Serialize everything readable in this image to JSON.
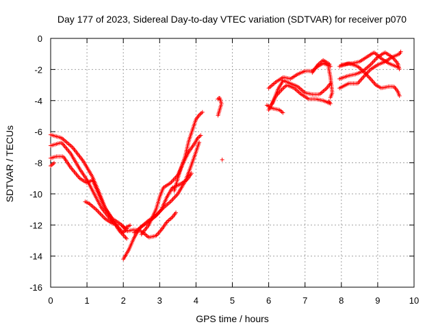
{
  "chart_data": {
    "type": "scatter",
    "title": "Day 177 of 2023, Sidereal Day-to-day VTEC variation (SDTVAR) for receiver p070",
    "xlabel": "GPS time / hours",
    "ylabel": "SDTVAR / TECUs",
    "xlim": [
      0,
      10
    ],
    "ylim": [
      -16,
      0
    ],
    "xticks": [
      0,
      1,
      2,
      3,
      4,
      5,
      6,
      7,
      8,
      9,
      10
    ],
    "yticks": [
      -16,
      -14,
      -12,
      -10,
      -8,
      -6,
      -4,
      -2,
      0
    ],
    "grid": true,
    "legend": "none",
    "marker": "plus",
    "color": "#ff0000",
    "series": [
      {
        "trace_points": [
          [
            0.0,
            -6.2
          ],
          [
            0.3,
            -6.4
          ],
          [
            0.6,
            -7.0
          ],
          [
            0.9,
            -7.9
          ],
          [
            1.15,
            -8.9
          ],
          [
            1.35,
            -10.0
          ],
          [
            1.5,
            -10.9
          ],
          [
            1.7,
            -11.6
          ],
          [
            1.9,
            -11.9
          ],
          [
            2.05,
            -12.2
          ],
          [
            2.2,
            -12.0
          ]
        ]
      },
      {
        "trace_points": [
          [
            0.0,
            -6.9
          ],
          [
            0.3,
            -6.7
          ],
          [
            0.55,
            -7.4
          ],
          [
            0.8,
            -8.4
          ],
          [
            1.0,
            -9.1
          ],
          [
            1.2,
            -10.0
          ],
          [
            1.4,
            -10.9
          ],
          [
            1.6,
            -11.5
          ],
          [
            1.8,
            -12.0
          ],
          [
            2.0,
            -12.5
          ],
          [
            2.1,
            -12.2
          ]
        ]
      },
      {
        "trace_points": [
          [
            0.0,
            -7.7
          ],
          [
            0.15,
            -7.6
          ],
          [
            0.35,
            -7.6
          ],
          [
            0.55,
            -8.3
          ],
          [
            0.8,
            -9.0
          ],
          [
            1.0,
            -9.3
          ],
          [
            1.15,
            -9.1
          ],
          [
            1.3,
            -9.9
          ],
          [
            1.5,
            -10.9
          ],
          [
            1.7,
            -11.7
          ],
          [
            1.9,
            -12.4
          ],
          [
            2.1,
            -12.9
          ]
        ]
      },
      {
        "trace_points": [
          [
            0.0,
            -8.2
          ],
          [
            0.1,
            -8.0
          ]
        ]
      },
      {
        "trace_points": [
          [
            0.95,
            -10.5
          ],
          [
            1.05,
            -10.6
          ],
          [
            1.25,
            -11.0
          ],
          [
            1.5,
            -11.6
          ],
          [
            1.7,
            -11.9
          ],
          [
            1.85,
            -12.0
          ]
        ]
      },
      {
        "trace_points": [
          [
            1.95,
            -12.0
          ],
          [
            2.1,
            -12.4
          ],
          [
            2.3,
            -12.3
          ],
          [
            2.5,
            -12.4
          ],
          [
            2.7,
            -12.8
          ],
          [
            2.9,
            -12.7
          ],
          [
            3.05,
            -12.3
          ],
          [
            3.2,
            -11.8
          ],
          [
            3.35,
            -11.5
          ],
          [
            3.45,
            -11.2
          ]
        ]
      },
      {
        "trace_points": [
          [
            2.0,
            -14.2
          ],
          [
            2.15,
            -13.6
          ],
          [
            2.3,
            -12.8
          ],
          [
            2.45,
            -12.2
          ],
          [
            2.6,
            -11.9
          ],
          [
            2.7,
            -11.7
          ],
          [
            2.9,
            -11.4
          ],
          [
            3.05,
            -11.0
          ],
          [
            3.2,
            -10.2
          ],
          [
            3.35,
            -9.6
          ],
          [
            3.55,
            -9.4
          ],
          [
            3.75,
            -9.1
          ],
          [
            3.9,
            -8.6
          ]
        ]
      },
      {
        "trace_points": [
          [
            2.3,
            -12.5
          ],
          [
            2.5,
            -12.1
          ],
          [
            2.7,
            -11.8
          ],
          [
            2.9,
            -11.4
          ],
          [
            3.1,
            -10.9
          ],
          [
            3.3,
            -10.5
          ],
          [
            3.5,
            -10.0
          ],
          [
            3.7,
            -9.2
          ],
          [
            3.85,
            -8.3
          ],
          [
            4.0,
            -7.3
          ],
          [
            4.1,
            -6.6
          ]
        ]
      },
      {
        "trace_points": [
          [
            2.5,
            -12.6
          ],
          [
            2.7,
            -12.0
          ],
          [
            2.9,
            -11.0
          ],
          [
            3.0,
            -10.2
          ],
          [
            3.1,
            -9.6
          ],
          [
            3.3,
            -9.3
          ],
          [
            3.5,
            -8.8
          ],
          [
            3.65,
            -8.0
          ],
          [
            3.8,
            -7.3
          ],
          [
            3.95,
            -6.8
          ],
          [
            4.05,
            -6.4
          ],
          [
            4.15,
            -6.2
          ]
        ]
      },
      {
        "trace_points": [
          [
            3.4,
            -9.8
          ],
          [
            3.55,
            -8.6
          ],
          [
            3.7,
            -7.6
          ],
          [
            3.8,
            -6.6
          ],
          [
            3.9,
            -5.9
          ],
          [
            4.0,
            -5.2
          ],
          [
            4.1,
            -4.9
          ],
          [
            4.2,
            -4.7
          ]
        ]
      },
      {
        "trace_points": [
          [
            4.6,
            -3.9
          ],
          [
            4.65,
            -3.8
          ],
          [
            4.7,
            -4.2
          ],
          [
            4.65,
            -4.6
          ],
          [
            4.6,
            -5.0
          ]
        ]
      },
      {
        "trace_points": [
          [
            4.72,
            -7.8
          ]
        ]
      },
      {
        "trace_points": [
          [
            5.95,
            -4.3
          ],
          [
            6.1,
            -4.5
          ],
          [
            6.3,
            -4.6
          ],
          [
            6.4,
            -4.8
          ]
        ]
      },
      {
        "trace_points": [
          [
            6.0,
            -3.2
          ],
          [
            6.2,
            -2.8
          ],
          [
            6.4,
            -2.5
          ],
          [
            6.6,
            -2.6
          ],
          [
            6.8,
            -2.3
          ],
          [
            7.0,
            -2.1
          ],
          [
            7.2,
            -2.1
          ],
          [
            7.35,
            -1.8
          ],
          [
            7.5,
            -1.6
          ],
          [
            7.7,
            -1.8
          ]
        ]
      },
      {
        "trace_points": [
          [
            6.0,
            -4.6
          ],
          [
            6.2,
            -3.7
          ],
          [
            6.4,
            -3.2
          ],
          [
            6.5,
            -3.0
          ],
          [
            6.7,
            -3.2
          ],
          [
            6.9,
            -3.6
          ],
          [
            7.1,
            -3.9
          ],
          [
            7.3,
            -3.9
          ],
          [
            7.5,
            -4.0
          ],
          [
            7.7,
            -4.2
          ],
          [
            7.65,
            -4.0
          ]
        ]
      },
      {
        "trace_points": [
          [
            6.1,
            -4.2
          ],
          [
            6.25,
            -3.3
          ],
          [
            6.4,
            -2.7
          ],
          [
            6.6,
            -2.9
          ],
          [
            6.8,
            -3.1
          ],
          [
            7.0,
            -3.5
          ],
          [
            7.2,
            -3.6
          ],
          [
            7.4,
            -3.6
          ],
          [
            7.6,
            -3.2
          ],
          [
            7.7,
            -2.9
          ]
        ]
      },
      {
        "trace_points": [
          [
            7.2,
            -2.2
          ],
          [
            7.35,
            -1.7
          ],
          [
            7.5,
            -1.4
          ],
          [
            7.7,
            -1.7
          ]
        ]
      },
      {
        "trace_points": [
          [
            7.7,
            -3.8
          ],
          [
            7.75,
            -3.5
          ],
          [
            7.7,
            -2.5
          ],
          [
            7.65,
            -1.9
          ]
        ]
      },
      {
        "trace_points": [
          [
            7.95,
            -3.2
          ],
          [
            8.2,
            -2.9
          ],
          [
            8.45,
            -2.9
          ],
          [
            8.6,
            -2.5
          ],
          [
            8.8,
            -2.0
          ],
          [
            9.0,
            -1.7
          ],
          [
            9.2,
            -1.5
          ],
          [
            9.4,
            -1.2
          ],
          [
            9.6,
            -1.0
          ],
          [
            9.65,
            -0.8
          ]
        ]
      },
      {
        "trace_points": [
          [
            7.95,
            -1.8
          ],
          [
            8.2,
            -1.6
          ],
          [
            8.45,
            -1.8
          ],
          [
            8.6,
            -2.1
          ],
          [
            8.8,
            -2.6
          ],
          [
            8.95,
            -3.0
          ],
          [
            9.1,
            -3.2
          ],
          [
            9.3,
            -3.1
          ],
          [
            9.45,
            -3.1
          ],
          [
            9.55,
            -3.4
          ],
          [
            9.6,
            -3.7
          ]
        ]
      },
      {
        "trace_points": [
          [
            7.95,
            -2.6
          ],
          [
            8.2,
            -2.4
          ],
          [
            8.4,
            -2.3
          ],
          [
            8.6,
            -2.1
          ],
          [
            8.8,
            -1.7
          ],
          [
            9.0,
            -1.2
          ],
          [
            9.2,
            -0.9
          ],
          [
            9.4,
            -1.2
          ],
          [
            9.55,
            -1.6
          ],
          [
            9.6,
            -2.0
          ]
        ]
      },
      {
        "trace_points": [
          [
            8.0,
            -1.7
          ],
          [
            8.3,
            -1.6
          ],
          [
            8.5,
            -1.5
          ],
          [
            8.7,
            -1.2
          ],
          [
            8.9,
            -0.9
          ],
          [
            9.1,
            -1.3
          ],
          [
            9.3,
            -1.6
          ],
          [
            9.5,
            -1.8
          ],
          [
            9.6,
            -1.9
          ]
        ]
      }
    ]
  }
}
